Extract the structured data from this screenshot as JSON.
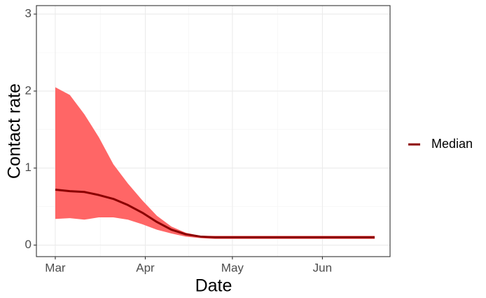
{
  "chart_data": {
    "type": "line",
    "x_label": "Date",
    "y_label": "Contact rate",
    "x": [
      0,
      5,
      10,
      15,
      20,
      25,
      30,
      35,
      40,
      45,
      50,
      55,
      60,
      65,
      70,
      75,
      80,
      85,
      90,
      95,
      100,
      105,
      110
    ],
    "series": [
      {
        "name": "Median",
        "color": "#8b0000",
        "values": [
          0.72,
          0.7,
          0.69,
          0.65,
          0.6,
          0.52,
          0.42,
          0.3,
          0.2,
          0.14,
          0.11,
          0.1,
          0.1,
          0.1,
          0.1,
          0.1,
          0.1,
          0.1,
          0.1,
          0.1,
          0.1,
          0.1,
          0.1
        ]
      }
    ],
    "band": {
      "color": "#ff6666",
      "upper": [
        2.05,
        1.95,
        1.7,
        1.4,
        1.05,
        0.8,
        0.58,
        0.38,
        0.24,
        0.16,
        0.12,
        0.12,
        0.12,
        0.12,
        0.12,
        0.12,
        0.12,
        0.12,
        0.12,
        0.12,
        0.12,
        0.12,
        0.12
      ],
      "lower": [
        0.34,
        0.35,
        0.33,
        0.36,
        0.36,
        0.33,
        0.27,
        0.2,
        0.15,
        0.11,
        0.09,
        0.08,
        0.08,
        0.08,
        0.08,
        0.08,
        0.08,
        0.08,
        0.08,
        0.08,
        0.08,
        0.08,
        0.08
      ]
    },
    "xlim": [
      -6.5,
      115.3
    ],
    "xticks": [
      {
        "value": 0,
        "label": "Mar"
      },
      {
        "value": 31,
        "label": "Apr"
      },
      {
        "value": 61,
        "label": "May"
      },
      {
        "value": 92,
        "label": "Jun"
      }
    ],
    "ylim": [
      -0.15,
      3.11
    ],
    "yticks": [
      0,
      1,
      2,
      3
    ],
    "grid": true,
    "legend": "right"
  }
}
